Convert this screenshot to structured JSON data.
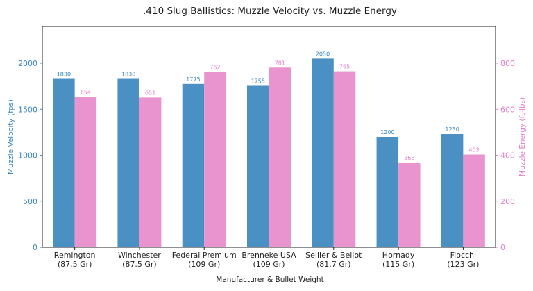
{
  "chart_data": {
    "type": "bar",
    "title": ".410 Slug Ballistics: Muzzle Velocity vs. Muzzle Energy",
    "xlabel": "Manufacturer & Bullet Weight",
    "categories": [
      [
        "Remington",
        "(87.5 Gr)"
      ],
      [
        "Winchester",
        "(87.5 Gr)"
      ],
      [
        "Federal Premium",
        "(109 Gr)"
      ],
      [
        "Brenneke USA",
        "(109 Gr)"
      ],
      [
        "Sellier & Bellot",
        "(81.7 Gr)"
      ],
      [
        "Hornady",
        "(115 Gr)"
      ],
      [
        "Fiocchi",
        "(123 Gr)"
      ]
    ],
    "series": [
      {
        "axis": "left",
        "color": "#4a90c2",
        "values": [
          1830,
          1830,
          1775,
          1755,
          2050,
          1200,
          1230
        ]
      },
      {
        "axis": "right",
        "color": "#e993cf",
        "values": [
          654,
          651,
          762,
          781,
          765,
          368,
          403
        ]
      }
    ],
    "y_left": {
      "label": "Muzzle Velocity (fps)",
      "range": [
        0,
        2400
      ],
      "ticks": [
        0,
        500,
        1000,
        1500,
        2000
      ],
      "color": "#3a86bf"
    },
    "y_right": {
      "label": "Muzzle Energy (ft-lbs)",
      "range": [
        0,
        960
      ],
      "ticks": [
        0,
        200,
        400,
        600,
        800
      ],
      "color": "#e27fca"
    },
    "grid": false,
    "legend": "none"
  }
}
